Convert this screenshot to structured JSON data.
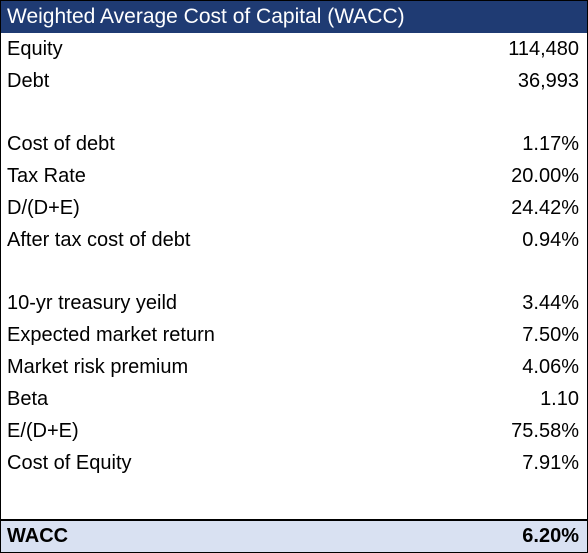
{
  "title": "Weighted Average Cost of Capital (WACC)",
  "rows": [
    {
      "label": "Equity",
      "value": "114,480"
    },
    {
      "label": "Debt",
      "value": "36,993"
    },
    {
      "label": "",
      "value": ""
    },
    {
      "label": "Cost of debt",
      "value": "1.17%"
    },
    {
      "label": "Tax Rate",
      "value": "20.00%"
    },
    {
      "label": "D/(D+E)",
      "value": "24.42%"
    },
    {
      "label": "After tax cost of debt",
      "value": "0.94%"
    },
    {
      "label": "",
      "value": ""
    },
    {
      "label": "10-yr treasury yeild",
      "value": "3.44%"
    },
    {
      "label": "Expected market return",
      "value": "7.50%"
    },
    {
      "label": "Market risk premium",
      "value": "4.06%"
    },
    {
      "label": "Beta",
      "value": "1.10"
    },
    {
      "label": "E/(D+E)",
      "value": "75.58%"
    },
    {
      "label": "Cost of Equity",
      "value": "7.91%"
    }
  ],
  "total": {
    "label": "WACC",
    "value": "6.20%"
  },
  "colors": {
    "header_bg": "#1f3b73",
    "header_text": "#ffffff",
    "total_bg": "#d9e1f2"
  }
}
